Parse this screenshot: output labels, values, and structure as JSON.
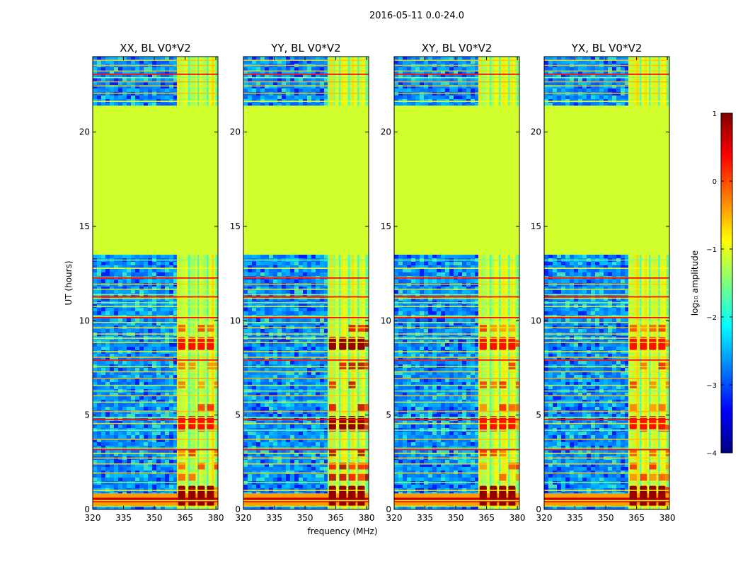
{
  "chart_data": {
    "type": "heatmap",
    "title": "2016-05-11 0.0-24.0",
    "xlabel": "frequency (MHz)",
    "ylabel": "UT (hours)",
    "xlim": [
      320,
      381
    ],
    "ylim": [
      0,
      24
    ],
    "x_ticks": [
      320,
      335,
      350,
      365,
      380
    ],
    "y_ticks": [
      0,
      5,
      10,
      15,
      20
    ],
    "panels": [
      {
        "title": "XX, BL V0*V2"
      },
      {
        "title": "YY, BL V0*V2"
      },
      {
        "title": "XY, BL V0*V2"
      },
      {
        "title": "YX, BL V0*V2"
      }
    ],
    "colorbar": {
      "label": "log₁₀ amplitude",
      "ticks": [
        "1",
        "0",
        "−1",
        "−2",
        "−3",
        "−4"
      ],
      "range": [
        -4,
        1
      ],
      "colormap": [
        "#00007f",
        "#0000ff",
        "#007fff",
        "#00ffff",
        "#7fff7f",
        "#ffff00",
        "#ff7f00",
        "#ff0000",
        "#7f0000"
      ]
    },
    "data_gap": {
      "start_hour": 13.5,
      "end_hour": 21.4,
      "fill_value": -1.1
    },
    "bright_band_mhz": [
      361,
      381
    ],
    "strong_rfi_hours": [
      0.5,
      0.9,
      4.6,
      8.8
    ]
  }
}
